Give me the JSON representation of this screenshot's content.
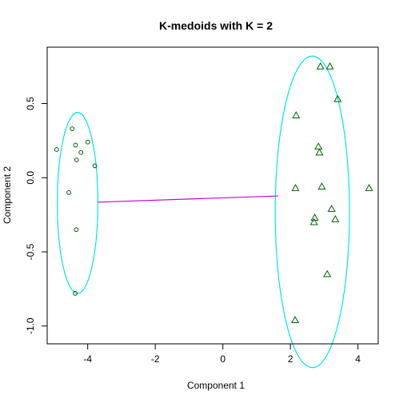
{
  "chart_data": {
    "type": "scatter",
    "title": "K-medoids with K = 2",
    "xlabel": "Component 1",
    "ylabel": "Component 2",
    "xlim": [
      -5.2,
      4.6
    ],
    "ylim": [
      -1.12,
      0.88
    ],
    "x_ticks": [
      -4,
      -2,
      0,
      2,
      4
    ],
    "x_tick_labels": [
      "-4",
      "-2",
      "0",
      "2",
      "4"
    ],
    "y_ticks": [
      -1.0,
      -0.5,
      0.0,
      0.5
    ],
    "y_tick_labels": [
      "-1.0",
      "-0.5",
      "0.0",
      "0.5"
    ],
    "grid": false,
    "clusters": [
      {
        "marker": "circle",
        "color": "#006400",
        "points": [
          [
            -4.92,
            0.19
          ],
          [
            -4.46,
            0.33
          ],
          [
            -4.36,
            0.22
          ],
          [
            -4.2,
            0.17
          ],
          [
            -4.0,
            0.24
          ],
          [
            -4.33,
            0.12
          ],
          [
            -3.79,
            0.08
          ],
          [
            -4.56,
            -0.1
          ],
          [
            -4.34,
            -0.35
          ],
          [
            -4.37,
            -0.78
          ]
        ],
        "ellipse": {
          "cx": -4.3,
          "cy": -0.17,
          "rx": 0.6,
          "ry": 0.61,
          "color": "#00E5EE"
        }
      },
      {
        "marker": "triangle",
        "color": "#006400",
        "points": [
          [
            2.89,
            0.75
          ],
          [
            3.17,
            0.75
          ],
          [
            3.4,
            0.53
          ],
          [
            2.17,
            0.42
          ],
          [
            2.83,
            0.21
          ],
          [
            2.86,
            0.17
          ],
          [
            2.15,
            -0.07
          ],
          [
            2.93,
            -0.06
          ],
          [
            4.33,
            -0.07
          ],
          [
            3.22,
            -0.21
          ],
          [
            2.72,
            -0.27
          ],
          [
            3.33,
            -0.28
          ],
          [
            2.7,
            -0.3
          ],
          [
            3.09,
            -0.65
          ],
          [
            2.14,
            -0.96
          ]
        ],
        "ellipse": {
          "cx": 2.65,
          "cy": -0.23,
          "rx": 1.1,
          "ry": 1.05,
          "color": "#00E5EE"
        }
      }
    ],
    "link_line": {
      "from": [
        -3.69,
        -0.165
      ],
      "to": [
        1.64,
        -0.123
      ],
      "color": "#CC00CC"
    }
  }
}
